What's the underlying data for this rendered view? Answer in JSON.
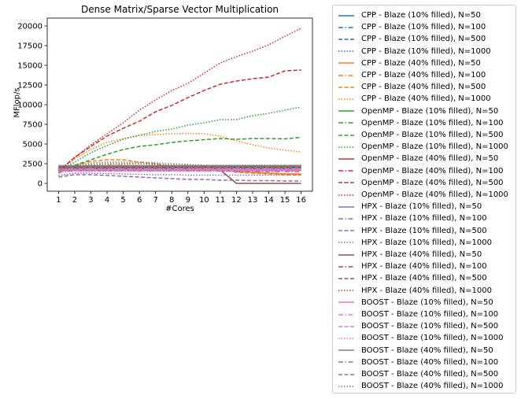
{
  "chart_data": {
    "type": "line",
    "title": "Dense Matrix/Sparse Vector Multiplication",
    "xlabel": "#Cores",
    "ylabel": "MFlop/s",
    "x": [
      1,
      2,
      3,
      4,
      5,
      6,
      7,
      8,
      9,
      10,
      11,
      12,
      13,
      14,
      15,
      16
    ],
    "xlim": [
      0.3,
      16.7
    ],
    "ylim": [
      -1000,
      21000
    ],
    "yticks": [
      0,
      2500,
      5000,
      7500,
      10000,
      12500,
      15000,
      17500,
      20000
    ],
    "grid": false,
    "legend_position": "outside-right",
    "series": [
      {
        "name": "CPP - Blaze (10% filled), N=50",
        "color": "#1f77b4",
        "style": "solid",
        "values": [
          1950,
          1950,
          1950,
          1950,
          1950,
          1950,
          1950,
          1950,
          1950,
          1950,
          1950,
          1950,
          1950,
          1950,
          1950,
          1950
        ]
      },
      {
        "name": "CPP - Blaze (10% filled), N=100",
        "color": "#1f77b4",
        "style": "dashdot",
        "values": [
          2000,
          2000,
          2000,
          2000,
          2000,
          2000,
          2000,
          2000,
          2000,
          2000,
          2000,
          2000,
          2000,
          2000,
          2000,
          2000
        ]
      },
      {
        "name": "CPP - Blaze (10% filled), N=500",
        "color": "#1f77b4",
        "style": "dashed",
        "values": [
          1800,
          1850,
          1850,
          1850,
          1850,
          1850,
          1850,
          1850,
          1850,
          1850,
          1850,
          1850,
          1850,
          1850,
          1850,
          1850
        ]
      },
      {
        "name": "CPP - Blaze (10% filled), N=1000",
        "color": "#1f77b4",
        "style": "dotted",
        "values": [
          1750,
          1750,
          1750,
          1750,
          1750,
          1750,
          1750,
          1750,
          1750,
          1750,
          1750,
          1750,
          1750,
          1750,
          1750,
          1750
        ]
      },
      {
        "name": "CPP - Blaze (40% filled), N=50",
        "color": "#ff7f0e",
        "style": "solid",
        "values": [
          2100,
          2100,
          2100,
          2100,
          2100,
          2100,
          2100,
          2100,
          2100,
          2100,
          2100,
          1500,
          1400,
          1300,
          1200,
          1200
        ]
      },
      {
        "name": "CPP - Blaze (40% filled), N=100",
        "color": "#ff7f0e",
        "style": "dashdot",
        "values": [
          2000,
          2100,
          2200,
          2300,
          2300,
          2200,
          2200,
          2100,
          2050,
          2000,
          1950,
          1500,
          1400,
          1300,
          1200,
          1150
        ]
      },
      {
        "name": "CPP - Blaze (40% filled), N=500",
        "color": "#ff7f0e",
        "style": "dashed",
        "values": [
          1700,
          2300,
          2800,
          3000,
          3000,
          2700,
          2500,
          2100,
          2000,
          1900,
          1800,
          1400,
          1300,
          1200,
          1100,
          1050
        ]
      },
      {
        "name": "CPP - Blaze (40% filled), N=1000",
        "color": "#ff7f0e",
        "style": "dotted",
        "values": [
          1600,
          3100,
          4300,
          5200,
          5700,
          6100,
          6200,
          6300,
          6350,
          6300,
          6000,
          5400,
          4900,
          4500,
          4200,
          4000
        ]
      },
      {
        "name": "OpenMP - Blaze (10% filled), N=50",
        "color": "#2ca02c",
        "style": "solid",
        "values": [
          2050,
          2050,
          2050,
          2050,
          2050,
          2050,
          2050,
          2050,
          2050,
          2050,
          2050,
          2050,
          2050,
          2050,
          2050,
          2050
        ]
      },
      {
        "name": "OpenMP - Blaze (10% filled), N=100",
        "color": "#2ca02c",
        "style": "dashdot",
        "values": [
          1950,
          2000,
          2000,
          2000,
          2000,
          2000,
          2000,
          2000,
          2000,
          2000,
          2000,
          2000,
          2000,
          2000,
          2000,
          2000
        ]
      },
      {
        "name": "OpenMP - Blaze (10% filled), N=500",
        "color": "#2ca02c",
        "style": "dashed",
        "values": [
          1300,
          2300,
          3000,
          3700,
          4300,
          4700,
          4900,
          5200,
          5400,
          5550,
          5700,
          5600,
          5700,
          5700,
          5650,
          5850
        ]
      },
      {
        "name": "OpenMP - Blaze (10% filled), N=1000",
        "color": "#2ca02c",
        "style": "dotted",
        "values": [
          1500,
          2700,
          3900,
          4800,
          5600,
          6100,
          6600,
          6900,
          7400,
          7700,
          8100,
          8100,
          8600,
          8900,
          9300,
          9700
        ]
      },
      {
        "name": "OpenMP - Blaze (40% filled), N=50",
        "color": "#d62728",
        "style": "solid",
        "values": [
          2100,
          2100,
          2100,
          2100,
          2100,
          2100,
          2100,
          2100,
          2100,
          2100,
          2100,
          2100,
          2100,
          2100,
          2100,
          2100
        ]
      },
      {
        "name": "OpenMP - Blaze (40% filled), N=100",
        "color": "#d62728",
        "style": "dashdot",
        "values": [
          2000,
          2000,
          2000,
          2000,
          2000,
          2000,
          2000,
          2000,
          2000,
          2000,
          2000,
          2000,
          2000,
          2000,
          2000,
          2000
        ]
      },
      {
        "name": "OpenMP - Blaze (40% filled), N=500",
        "color": "#d62728",
        "style": "dashed",
        "values": [
          1500,
          3300,
          4700,
          6000,
          7000,
          7900,
          9100,
          9900,
          10900,
          11800,
          12600,
          13000,
          13300,
          13500,
          14300,
          14400
        ]
      },
      {
        "name": "OpenMP - Blaze (40% filled), N=1000",
        "color": "#d62728",
        "style": "dotted",
        "values": [
          1600,
          3300,
          4900,
          6300,
          7700,
          9300,
          10600,
          11800,
          12700,
          14000,
          15300,
          16100,
          16800,
          17600,
          18700,
          19700
        ]
      },
      {
        "name": "HPX - Blaze (10% filled), N=50",
        "color": "#9467bd",
        "style": "solid",
        "values": [
          1650,
          1650,
          1650,
          1650,
          1650,
          1650,
          1650,
          1650,
          1650,
          1650,
          1650,
          1650,
          1650,
          1650,
          1650,
          1650
        ]
      },
      {
        "name": "HPX - Blaze (10% filled), N=100",
        "color": "#9467bd",
        "style": "dashdot",
        "values": [
          1500,
          1600,
          1600,
          1600,
          1600,
          1600,
          1600,
          1600,
          1600,
          1600,
          1600,
          1500,
          1500,
          1500,
          1500,
          1500
        ]
      },
      {
        "name": "HPX - Blaze (10% filled), N=500",
        "color": "#9467bd",
        "style": "dashed",
        "values": [
          800,
          1100,
          1100,
          1000,
          900,
          800,
          700,
          600,
          500,
          500,
          400,
          400,
          350,
          350,
          300,
          300
        ]
      },
      {
        "name": "HPX - Blaze (10% filled), N=1000",
        "color": "#9467bd",
        "style": "dotted",
        "values": [
          1000,
          1300,
          1300,
          1250,
          1200,
          1150,
          1100,
          1100,
          1050,
          1050,
          1050,
          1050,
          1050,
          1050,
          1050,
          1050
        ]
      },
      {
        "name": "HPX - Blaze (40% filled), N=50",
        "color": "#8c564b",
        "style": "solid",
        "values": [
          1700,
          1700,
          1700,
          1700,
          1700,
          1700,
          1700,
          1700,
          1700,
          1700,
          1700,
          0,
          0,
          0,
          0,
          0
        ]
      },
      {
        "name": "HPX - Blaze (40% filled), N=100",
        "color": "#8c564b",
        "style": "dashdot",
        "values": [
          2200,
          2200,
          2200,
          2200,
          2200,
          2200,
          2200,
          2200,
          2200,
          2200,
          2200,
          2200,
          2200,
          2200,
          2200,
          2200
        ]
      },
      {
        "name": "HPX - Blaze (40% filled), N=500",
        "color": "#8c564b",
        "style": "dashed",
        "values": [
          2000,
          2100,
          2100,
          2100,
          2100,
          2100,
          2100,
          2100,
          2100,
          2100,
          2100,
          2100,
          2100,
          2100,
          2100,
          2100
        ]
      },
      {
        "name": "HPX - Blaze (40% filled), N=1000",
        "color": "#8c564b",
        "style": "dotted",
        "values": [
          1600,
          2100,
          2400,
          2500,
          2500,
          2500,
          2400,
          2300,
          2250,
          2200,
          2200,
          2200,
          2200,
          2200,
          2200,
          2200
        ]
      },
      {
        "name": "BOOST - Blaze (10% filled), N=50",
        "color": "#e377c2",
        "style": "solid",
        "values": [
          1750,
          1750,
          1750,
          1750,
          1750,
          1750,
          1750,
          1750,
          1750,
          1750,
          1750,
          1750,
          1750,
          1750,
          1750,
          1750
        ]
      },
      {
        "name": "BOOST - Blaze (10% filled), N=100",
        "color": "#e377c2",
        "style": "dashdot",
        "values": [
          1850,
          1850,
          1850,
          1850,
          1850,
          1850,
          1850,
          1850,
          1850,
          1850,
          1850,
          1850,
          1850,
          1850,
          1850,
          1850
        ]
      },
      {
        "name": "BOOST - Blaze (10% filled), N=500",
        "color": "#e377c2",
        "style": "dashed",
        "values": [
          1600,
          1650,
          1650,
          1650,
          1650,
          1650,
          1650,
          1650,
          1650,
          1650,
          1650,
          1650,
          1650,
          1650,
          1650,
          1650
        ]
      },
      {
        "name": "BOOST - Blaze (10% filled), N=1000",
        "color": "#e377c2",
        "style": "dotted",
        "values": [
          1500,
          1550,
          1550,
          1550,
          1550,
          1550,
          1550,
          1550,
          1550,
          1550,
          1550,
          1550,
          1550,
          1550,
          1550,
          1550
        ]
      },
      {
        "name": "BOOST - Blaze (40% filled), N=50",
        "color": "#7f7f7f",
        "style": "solid",
        "values": [
          2250,
          2250,
          2250,
          2250,
          2250,
          2250,
          2250,
          2250,
          2250,
          2250,
          2250,
          2250,
          2250,
          2250,
          2250,
          2250
        ]
      },
      {
        "name": "BOOST - Blaze (40% filled), N=100",
        "color": "#7f7f7f",
        "style": "dashdot",
        "values": [
          2150,
          2150,
          2150,
          2150,
          2150,
          2150,
          2150,
          2150,
          2150,
          2150,
          2150,
          2150,
          2150,
          2150,
          2150,
          2150
        ]
      },
      {
        "name": "BOOST - Blaze (40% filled), N=500",
        "color": "#7f7f7f",
        "style": "dashed",
        "values": [
          1900,
          2000,
          2000,
          2000,
          2000,
          2000,
          2000,
          2000,
          2000,
          2000,
          2000,
          2000,
          2000,
          2000,
          2000,
          2000
        ]
      },
      {
        "name": "BOOST - Blaze (40% filled), N=1000",
        "color": "#7f7f7f",
        "style": "dotted",
        "values": [
          1650,
          2300,
          2600,
          2700,
          2700,
          2700,
          2600,
          2500,
          2400,
          2300,
          2300,
          2300,
          2300,
          2300,
          2300,
          2300
        ]
      }
    ]
  }
}
